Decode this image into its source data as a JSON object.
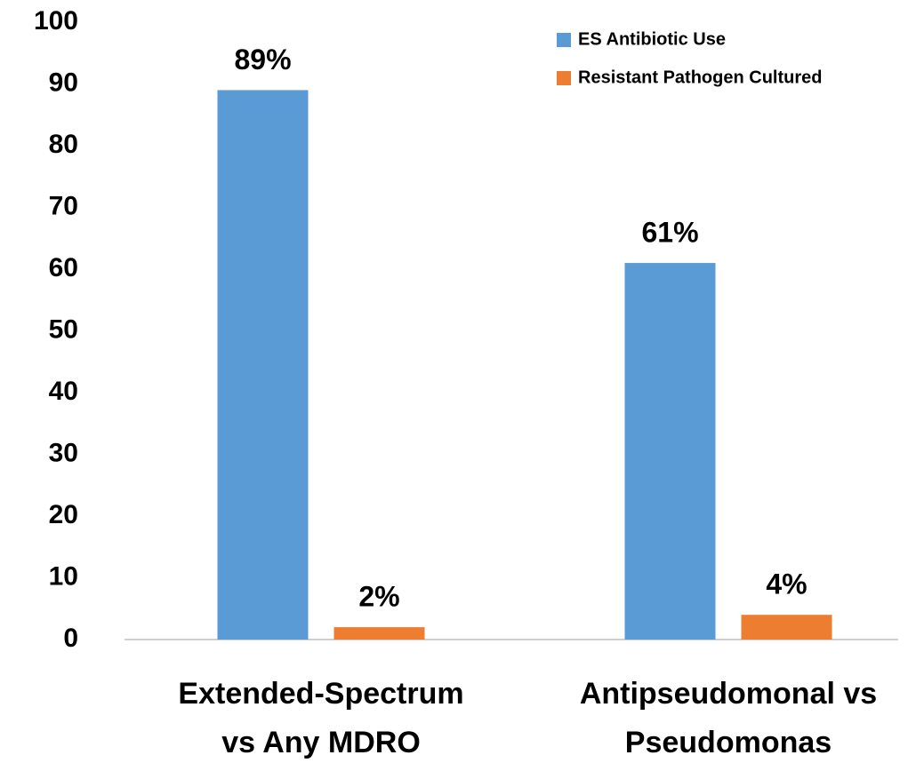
{
  "chart_data": {
    "type": "bar",
    "categories": [
      [
        "Extended-Spectrum",
        "vs Any MDRO"
      ],
      [
        "Antipseudomonal vs",
        "Pseudomonas"
      ]
    ],
    "series": [
      {
        "name": "ES Antibiotic Use",
        "color": "#5b9bd5",
        "values": [
          89,
          61
        ],
        "value_labels": [
          "89%",
          "61%"
        ]
      },
      {
        "name": "Resistant Pathogen Cultured",
        "color": "#ed7d31",
        "values": [
          2,
          4
        ],
        "value_labels": [
          "2%",
          "4%"
        ]
      }
    ],
    "ylim": [
      0,
      100
    ],
    "yticks": [
      0,
      10,
      20,
      30,
      40,
      50,
      60,
      70,
      80,
      90,
      100
    ],
    "grid": false,
    "legend": "top-right"
  }
}
